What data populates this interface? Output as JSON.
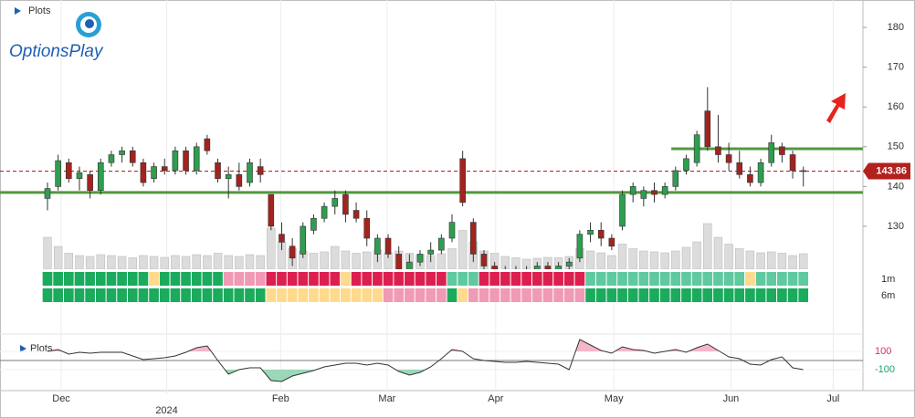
{
  "chart_data": {
    "type": "candlestick",
    "title": "Plots",
    "logo": "OptionsPlay",
    "xlim": [
      -4.46,
      76.6
    ],
    "xticks": [
      {
        "value": 1.29,
        "label": "Dec"
      },
      {
        "value": 21.9,
        "label": "Feb"
      },
      {
        "value": 31.9,
        "label": "Mar"
      },
      {
        "value": 42.1,
        "label": "Apr"
      },
      {
        "value": 53.2,
        "label": "May"
      },
      {
        "value": 64.2,
        "label": "Jun"
      },
      {
        "value": 73.8,
        "label": "Jul"
      }
    ],
    "year_tick": {
      "value": 11.2,
      "label": "2024"
    },
    "ylim": [
      119.2,
      186.9
    ],
    "yticks": [
      130,
      140,
      150,
      160,
      170,
      180
    ],
    "up_color": "#2e9e4f",
    "down_color": "#a3231f",
    "ohlc": [
      [
        137,
        141,
        134,
        139.5
      ],
      [
        140,
        148,
        139,
        146.5
      ],
      [
        146,
        147,
        141,
        142
      ],
      [
        142,
        145,
        139,
        143.5
      ],
      [
        143,
        144,
        137,
        139
      ],
      [
        139,
        147,
        138,
        146
      ],
      [
        146,
        149,
        145,
        148
      ],
      [
        148,
        150,
        146,
        149
      ],
      [
        149,
        150,
        145,
        146
      ],
      [
        146,
        147,
        140,
        141
      ],
      [
        142,
        146,
        141,
        145
      ],
      [
        145,
        147,
        143,
        144
      ],
      [
        144,
        150,
        143,
        149
      ],
      [
        149,
        150,
        143,
        144
      ],
      [
        144,
        151,
        143,
        150
      ],
      [
        152,
        153,
        148,
        149
      ],
      [
        146,
        147,
        141,
        142
      ],
      [
        142,
        145,
        137,
        143
      ],
      [
        143,
        146,
        139,
        140
      ],
      [
        141,
        147,
        140,
        146
      ],
      [
        145,
        147,
        141,
        143
      ],
      [
        138,
        138,
        129,
        130
      ],
      [
        128,
        131,
        124,
        126
      ],
      [
        125,
        127,
        120,
        122
      ],
      [
        123,
        131,
        122,
        130
      ],
      [
        129,
        133,
        128,
        132
      ],
      [
        132,
        136,
        131,
        135
      ],
      [
        135,
        139,
        133,
        137
      ],
      [
        138,
        139,
        131,
        133
      ],
      [
        134,
        136,
        131,
        132
      ],
      [
        132,
        134,
        125,
        127
      ],
      [
        123,
        128,
        121,
        127
      ],
      [
        127,
        128,
        122,
        123
      ],
      [
        123,
        125,
        118,
        119
      ],
      [
        119,
        123,
        118,
        121
      ],
      [
        121,
        124,
        120,
        123
      ],
      [
        123,
        126,
        121,
        124
      ],
      [
        124,
        128,
        123,
        127
      ],
      [
        127,
        133,
        126,
        131
      ],
      [
        147,
        149,
        135,
        136
      ],
      [
        131,
        132,
        121,
        123
      ],
      [
        123,
        124,
        119,
        120
      ],
      [
        120,
        121,
        117,
        118
      ],
      [
        118,
        120,
        116,
        119
      ],
      [
        119,
        120,
        116,
        117
      ],
      [
        117,
        120,
        116,
        119
      ],
      [
        119,
        121,
        117,
        120
      ],
      [
        120,
        121,
        118,
        119
      ],
      [
        119,
        121,
        117,
        120
      ],
      [
        120,
        122,
        118,
        121
      ],
      [
        122,
        129,
        121,
        128
      ],
      [
        128,
        131,
        126,
        129
      ],
      [
        129,
        131,
        125,
        127
      ],
      [
        127,
        128,
        124,
        125
      ],
      [
        130,
        139,
        129,
        138
      ],
      [
        138,
        141,
        136,
        140
      ],
      [
        137,
        140,
        135,
        139
      ],
      [
        139,
        141,
        136,
        138
      ],
      [
        138,
        141,
        137,
        140
      ],
      [
        140,
        145,
        139,
        144
      ],
      [
        144,
        148,
        143,
        147
      ],
      [
        146,
        154,
        145,
        153
      ],
      [
        159,
        165,
        149,
        150
      ],
      [
        150,
        158,
        146,
        148
      ],
      [
        148,
        151,
        144,
        146
      ],
      [
        146,
        149,
        142,
        143
      ],
      [
        143,
        145,
        140,
        141
      ],
      [
        141,
        147,
        140,
        146
      ],
      [
        146,
        153,
        145,
        151
      ],
      [
        150,
        151,
        146,
        148
      ],
      [
        148,
        149,
        142,
        144
      ],
      [
        144,
        145,
        140,
        143.86
      ]
    ],
    "last_price": 143.86,
    "last_price_color": "#b3211e",
    "levels": [
      {
        "value": 149.5,
        "start": 58.6
      },
      {
        "value": 138.5,
        "start": -4.46
      }
    ],
    "level_color": "#4f9a3c",
    "volume": {
      "ylim": [
        0,
        100
      ],
      "color": "#dcdcdc",
      "values": [
        70,
        50,
        35,
        30,
        28,
        32,
        30,
        28,
        25,
        30,
        28,
        26,
        30,
        28,
        32,
        30,
        35,
        30,
        28,
        32,
        30,
        90,
        60,
        45,
        40,
        35,
        38,
        50,
        40,
        35,
        38,
        42,
        36,
        40,
        35,
        32,
        30,
        34,
        45,
        85,
        60,
        40,
        35,
        28,
        25,
        22,
        24,
        26,
        25,
        28,
        45,
        40,
        36,
        30,
        55,
        45,
        40,
        38,
        36,
        40,
        48,
        60,
        100,
        70,
        55,
        45,
        40,
        36,
        38,
        35,
        30,
        34
      ]
    },
    "palette": {
      "g": "#1aab5c",
      "r": "#dc1f4f",
      "y": "#ffd98c",
      "p": "#f09ab5",
      "t": "#5fc9a0"
    },
    "strips": [
      {
        "name": "1m",
        "cells": [
          "g",
          "g",
          "g",
          "g",
          "g",
          "g",
          "g",
          "g",
          "g",
          "g",
          "y",
          "g",
          "g",
          "g",
          "g",
          "g",
          "g",
          "p",
          "p",
          "p",
          "p",
          "r",
          "r",
          "r",
          "r",
          "r",
          "r",
          "r",
          "y",
          "r",
          "r",
          "r",
          "r",
          "r",
          "r",
          "r",
          "r",
          "r",
          "t",
          "t",
          "t",
          "r",
          "r",
          "r",
          "r",
          "r",
          "r",
          "r",
          "r",
          "r",
          "r",
          "t",
          "t",
          "t",
          "t",
          "t",
          "t",
          "t",
          "t",
          "t",
          "t",
          "t",
          "t",
          "t",
          "t",
          "t",
          "y",
          "t",
          "t",
          "t",
          "t",
          "t"
        ]
      },
      {
        "name": "6m",
        "cells": [
          "g",
          "g",
          "g",
          "g",
          "g",
          "g",
          "g",
          "g",
          "g",
          "g",
          "g",
          "g",
          "g",
          "g",
          "g",
          "g",
          "g",
          "g",
          "g",
          "g",
          "g",
          "y",
          "y",
          "y",
          "y",
          "y",
          "y",
          "y",
          "y",
          "y",
          "y",
          "y",
          "p",
          "p",
          "p",
          "p",
          "p",
          "p",
          "g",
          "y",
          "p",
          "p",
          "p",
          "p",
          "p",
          "p",
          "p",
          "p",
          "p",
          "p",
          "p",
          "g",
          "g",
          "g",
          "g",
          "g",
          "g",
          "g",
          "g",
          "g",
          "g",
          "g",
          "g",
          "g",
          "g",
          "g",
          "g",
          "g",
          "g",
          "g",
          "g",
          "g"
        ]
      }
    ],
    "oscillator": {
      "title": "Plots",
      "ylim": [
        -300,
        270
      ],
      "yticks": [
        {
          "value": 100,
          "color": "#d6335a"
        },
        {
          "value": -100,
          "color": "#1aa36a"
        }
      ],
      "line_color": "#333333",
      "upper_fill": "#f4b6c8",
      "lower_fill": "#9ad8b8",
      "values": [
        100,
        120,
        70,
        90,
        80,
        90,
        90,
        90,
        50,
        10,
        20,
        30,
        50,
        90,
        140,
        160,
        0,
        -150,
        -100,
        -80,
        -80,
        -220,
        -230,
        -170,
        -140,
        -110,
        -70,
        -50,
        -30,
        -30,
        -50,
        -30,
        -50,
        -120,
        -160,
        -130,
        -70,
        20,
        120,
        100,
        20,
        0,
        -10,
        -20,
        -20,
        -10,
        -20,
        -30,
        -40,
        -100,
        230,
        170,
        110,
        80,
        150,
        120,
        110,
        80,
        100,
        120,
        90,
        140,
        180,
        110,
        40,
        20,
        -40,
        -50,
        10,
        40,
        -80,
        -100
      ]
    }
  }
}
